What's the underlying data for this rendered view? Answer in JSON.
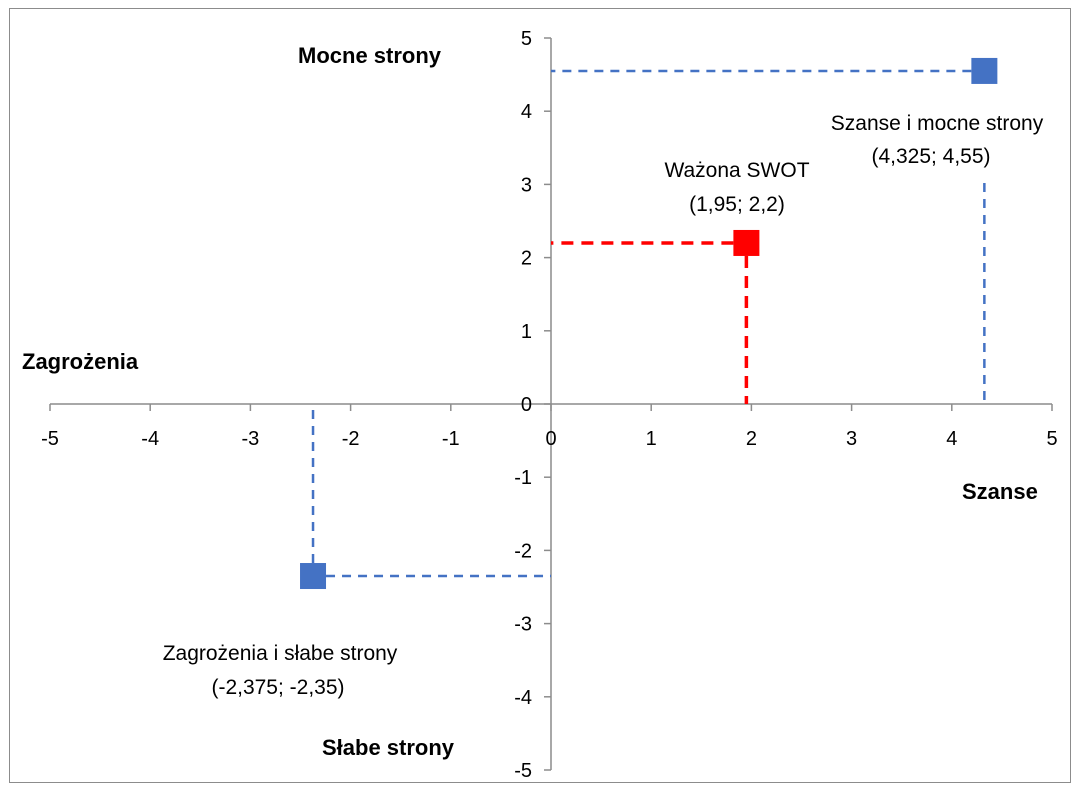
{
  "chart_data": {
    "type": "scatter",
    "title": "",
    "xlabel": "",
    "ylabel": "",
    "xlim": [
      -5,
      5
    ],
    "ylim": [
      -5,
      5
    ],
    "x_ticks": [
      "-5",
      "-4",
      "-3",
      "-2",
      "-1",
      "0",
      "1",
      "2",
      "3",
      "4",
      "5"
    ],
    "y_ticks": [
      "5",
      "4",
      "3",
      "2",
      "1",
      "0",
      "-1",
      "-2",
      "-3",
      "-4",
      "-5"
    ],
    "grid": false,
    "quadrant_labels": {
      "strengths": "Mocne strony",
      "threats": "Zagrożenia",
      "opportunities": "Szanse",
      "weaknesses": "Słabe strony"
    },
    "points": [
      {
        "label": "Szanse i mocne strony",
        "coords": "(4,325; 4,55)",
        "x": 4.325,
        "y": 4.55,
        "color": "#4472C4"
      },
      {
        "label": "Ważona SWOT",
        "coords": "(1,95; 2,2)",
        "x": 1.95,
        "y": 2.2,
        "color": "#FF0000"
      },
      {
        "label": "Zagrożenia i słabe  strony",
        "coords": "(-2,375; -2,35)",
        "x": -2.375,
        "y": -2.35,
        "color": "#4472C4"
      }
    ]
  }
}
